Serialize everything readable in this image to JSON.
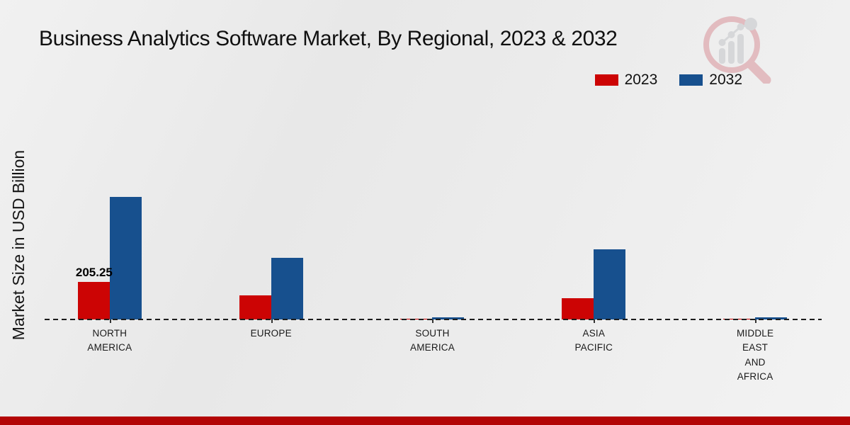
{
  "page": {
    "title": "Business Analytics Software Market, By Regional, 2023 & 2032",
    "ylabel": "Market Size in USD Billion"
  },
  "legend": {
    "items": [
      {
        "label": "2023",
        "color": "#cc0404"
      },
      {
        "label": "2032",
        "color": "#17508e"
      }
    ]
  },
  "chart_data": {
    "type": "bar",
    "title": "Business Analytics Software Market, By Regional, 2023 & 2032",
    "xlabel": "",
    "ylabel": "Market Size in USD Billion",
    "categories": [
      "NORTH\nAMERICA",
      "EUROPE",
      "SOUTH\nAMERICA",
      "ASIA\nPACIFIC",
      "MIDDLE\nEAST\nAND\nAFRICA"
    ],
    "series": [
      {
        "name": "2023",
        "color": "#cc0404",
        "values": [
          205.25,
          131,
          4,
          116,
          4
        ]
      },
      {
        "name": "2032",
        "color": "#17508e",
        "values": [
          670,
          337,
          12,
          383,
          13
        ]
      }
    ],
    "annotations": [
      {
        "series": "2023",
        "category_index": 0,
        "text": "205.25"
      }
    ],
    "ylim": [
      0,
      700
    ],
    "grid": false,
    "legend_position": "top-right",
    "baseline_style": "dashed"
  },
  "colors": {
    "bar_2023": "#cc0404",
    "bar_2032": "#17508e",
    "footer_stripe": "#b30505",
    "baseline": "#1c1c1c"
  },
  "icons": {
    "logo": "magnifier-growth-chart-icon"
  }
}
